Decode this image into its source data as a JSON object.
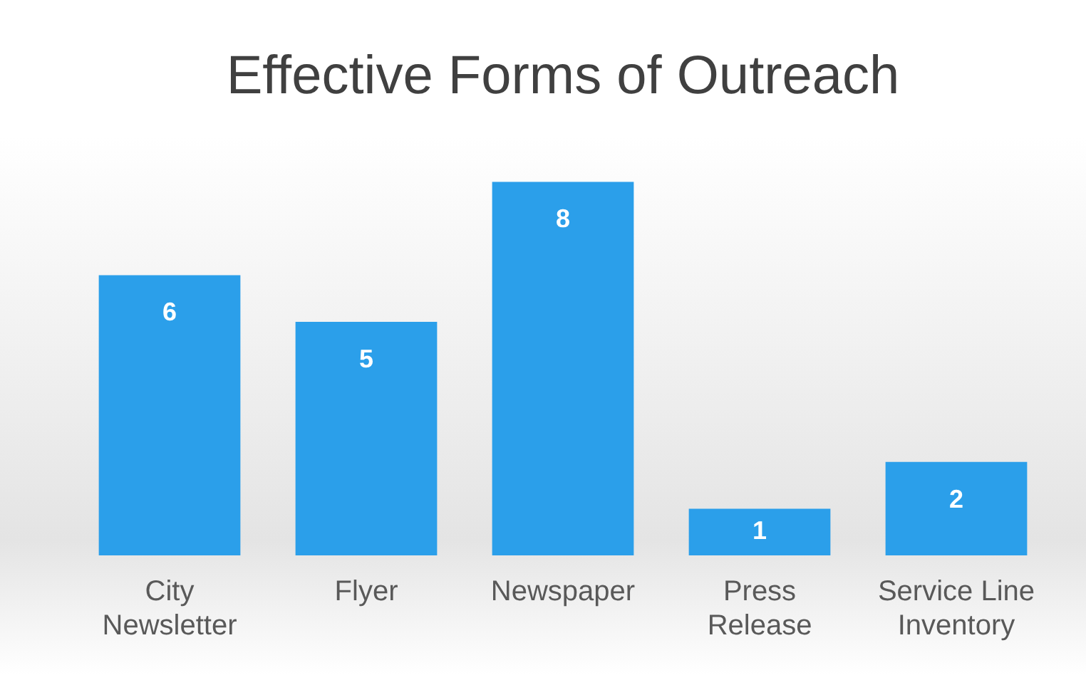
{
  "chart_data": {
    "type": "bar",
    "title": "Effective Forms of Outreach",
    "categories": [
      "City Newsletter",
      "Flyer",
      "Newspaper",
      "Press Release",
      "Service Line Inventory"
    ],
    "values": [
      6,
      5,
      8,
      1,
      2
    ],
    "color": "#2b9fea",
    "data_labels": true,
    "grid": false,
    "legend": false
  }
}
